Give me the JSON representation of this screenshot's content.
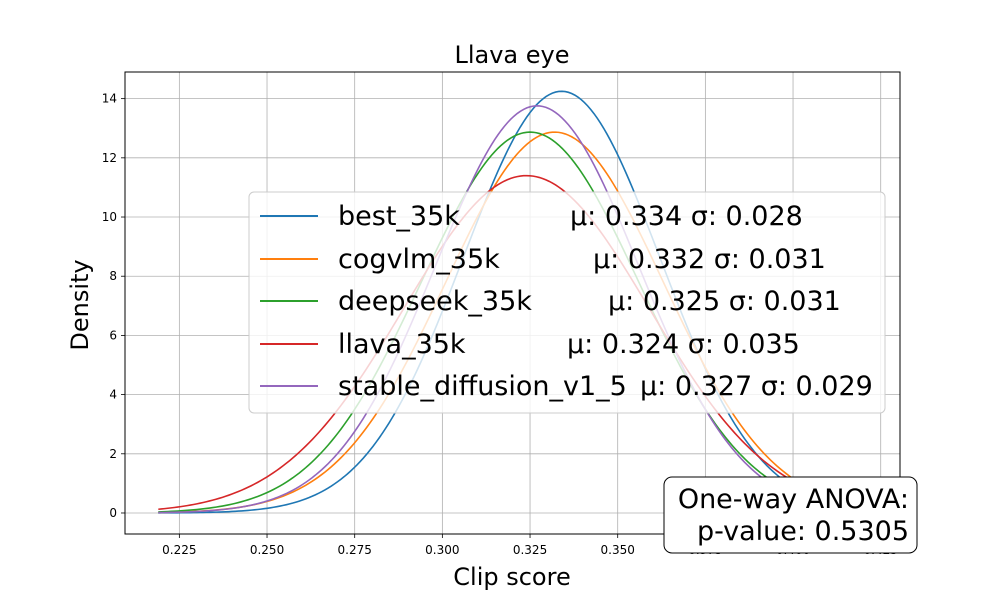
{
  "chart_data": {
    "type": "line",
    "title": "Llava eye",
    "xlabel": "Clip score",
    "ylabel": "Density",
    "xlim": [
      0.2095,
      0.4305
    ],
    "ylim": [
      -0.71,
      14.9
    ],
    "xticks": [
      0.225,
      0.25,
      0.275,
      0.3,
      0.325,
      0.35,
      0.375,
      0.4,
      0.425
    ],
    "xtick_labels": [
      "0.225",
      "0.250",
      "0.275",
      "0.300",
      "0.325",
      "0.350",
      "0.375",
      "0.400",
      "0.425"
    ],
    "yticks": [
      0,
      2,
      4,
      6,
      8,
      10,
      12,
      14
    ],
    "ytick_labels": [
      "0",
      "2",
      "4",
      "6",
      "8",
      "10",
      "12",
      "14"
    ],
    "x_range": [
      0.219,
      0.42
    ],
    "grid": true,
    "legend_position": "center-right",
    "series": [
      {
        "name": "best_35k",
        "stat": "μ: 0.334 σ: 0.028",
        "mu": 0.334,
        "sigma": 0.028,
        "color": "#1f77b4"
      },
      {
        "name": "cogvlm_35k",
        "stat": "μ: 0.332 σ: 0.031",
        "mu": 0.332,
        "sigma": 0.031,
        "color": "#ff7f0e"
      },
      {
        "name": "deepseek_35k",
        "stat": "μ: 0.325 σ: 0.031",
        "mu": 0.325,
        "sigma": 0.031,
        "color": "#2ca02c"
      },
      {
        "name": "llava_35k",
        "stat": "μ: 0.324 σ: 0.035",
        "mu": 0.324,
        "sigma": 0.035,
        "color": "#d62728"
      },
      {
        "name": "stable_diffusion_v1_5",
        "stat": "μ: 0.327 σ: 0.029",
        "mu": 0.327,
        "sigma": 0.029,
        "color": "#9467bd"
      }
    ],
    "annotation": {
      "line1": "One-way ANOVA:",
      "line2": "p-value: 0.5305",
      "position": "bottom-right"
    }
  }
}
